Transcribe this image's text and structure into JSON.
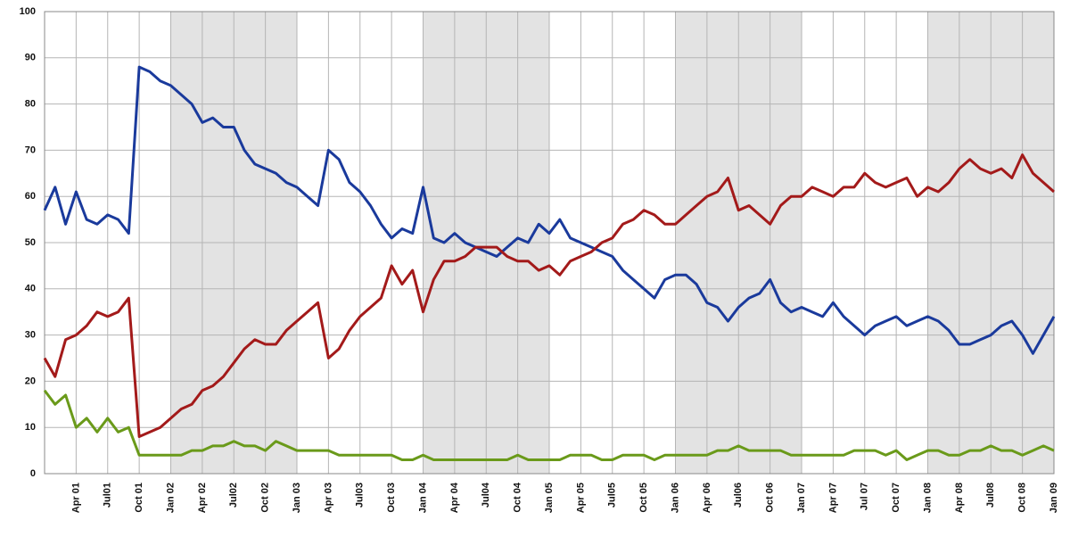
{
  "chart_data": {
    "type": "line",
    "x": [
      "2001-01",
      "2001-02",
      "2001-03",
      "2001-04",
      "2001-05",
      "2001-06",
      "2001-07",
      "2001-08",
      "2001-09",
      "2001-10",
      "2001-11",
      "2001-12",
      "2002-01",
      "2002-02",
      "2002-03",
      "2002-04",
      "2002-05",
      "2002-06",
      "2002-07",
      "2002-08",
      "2002-09",
      "2002-10",
      "2002-11",
      "2002-12",
      "2003-01",
      "2003-02",
      "2003-03",
      "2003-04",
      "2003-05",
      "2003-06",
      "2003-07",
      "2003-08",
      "2003-09",
      "2003-10",
      "2003-11",
      "2003-12",
      "2004-01",
      "2004-02",
      "2004-03",
      "2004-04",
      "2004-05",
      "2004-06",
      "2004-07",
      "2004-08",
      "2004-09",
      "2004-10",
      "2004-11",
      "2004-12",
      "2005-01",
      "2005-02",
      "2005-03",
      "2005-04",
      "2005-05",
      "2005-06",
      "2005-07",
      "2005-08",
      "2005-09",
      "2005-10",
      "2005-11",
      "2005-12",
      "2006-01",
      "2006-02",
      "2006-03",
      "2006-04",
      "2006-05",
      "2006-06",
      "2006-07",
      "2006-08",
      "2006-09",
      "2006-10",
      "2006-11",
      "2006-12",
      "2007-01",
      "2007-02",
      "2007-03",
      "2007-04",
      "2007-05",
      "2007-06",
      "2007-07",
      "2007-08",
      "2007-09",
      "2007-10",
      "2007-11",
      "2007-12",
      "2008-01",
      "2008-02",
      "2008-03",
      "2008-04",
      "2008-05",
      "2008-06",
      "2008-07",
      "2008-08",
      "2008-09",
      "2008-10",
      "2008-11",
      "2008-12",
      "2009-01"
    ],
    "series": [
      {
        "color": "#1a3a9c",
        "values": [
          57,
          62,
          54,
          61,
          55,
          54,
          56,
          55,
          52,
          88,
          87,
          85,
          84,
          82,
          80,
          76,
          77,
          75,
          75,
          70,
          67,
          66,
          65,
          63,
          62,
          60,
          58,
          70,
          68,
          63,
          61,
          58,
          54,
          51,
          53,
          52,
          62,
          51,
          50,
          52,
          50,
          49,
          48,
          47,
          49,
          51,
          50,
          54,
          52,
          55,
          51,
          50,
          49,
          48,
          47,
          44,
          42,
          40,
          38,
          42,
          43,
          43,
          41,
          37,
          36,
          33,
          36,
          38,
          39,
          42,
          37,
          35,
          36,
          35,
          34,
          37,
          34,
          32,
          30,
          32,
          33,
          34,
          32,
          33,
          34,
          33,
          31,
          28,
          28,
          29,
          30,
          32,
          33,
          30,
          26,
          30,
          34
        ]
      },
      {
        "color": "#a31a1a",
        "values": [
          25,
          21,
          29,
          30,
          32,
          35,
          34,
          35,
          38,
          8,
          9,
          10,
          12,
          14,
          15,
          18,
          19,
          21,
          24,
          27,
          29,
          28,
          28,
          31,
          33,
          35,
          37,
          25,
          27,
          31,
          34,
          36,
          38,
          45,
          41,
          44,
          35,
          42,
          46,
          46,
          47,
          49,
          49,
          49,
          47,
          46,
          46,
          44,
          45,
          43,
          46,
          47,
          48,
          50,
          51,
          54,
          55,
          57,
          56,
          54,
          54,
          56,
          58,
          60,
          61,
          64,
          57,
          58,
          56,
          54,
          58,
          60,
          60,
          62,
          61,
          60,
          62,
          62,
          65,
          63,
          62,
          63,
          64,
          60,
          62,
          61,
          63,
          66,
          68,
          66,
          65,
          66,
          64,
          69,
          65,
          63,
          61
        ]
      },
      {
        "color": "#6a9a1a",
        "values": [
          18,
          15,
          17,
          10,
          12,
          9,
          12,
          9,
          10,
          4,
          4,
          4,
          4,
          4,
          5,
          5,
          6,
          6,
          7,
          6,
          6,
          5,
          7,
          6,
          5,
          5,
          5,
          5,
          4,
          4,
          4,
          4,
          4,
          4,
          3,
          3,
          4,
          3,
          3,
          3,
          3,
          3,
          3,
          3,
          3,
          4,
          3,
          3,
          3,
          3,
          4,
          4,
          4,
          3,
          3,
          4,
          4,
          4,
          3,
          4,
          4,
          4,
          4,
          4,
          5,
          5,
          6,
          5,
          5,
          5,
          5,
          4,
          4,
          4,
          4,
          4,
          4,
          5,
          5,
          5,
          4,
          5,
          3,
          4,
          5,
          5,
          4,
          4,
          5,
          5,
          6,
          5,
          5,
          4,
          5,
          6,
          5
        ]
      }
    ],
    "xlim": [
      "2001-01",
      "2009-01"
    ],
    "xticks": [
      {
        "value": "2001-04",
        "label": "Apr 01"
      },
      {
        "value": "2001-07",
        "label": "Jul01"
      },
      {
        "value": "2001-10",
        "label": "Oct 01"
      },
      {
        "value": "2002-01",
        "label": "Jan 02"
      },
      {
        "value": "2002-04",
        "label": "Apr 02"
      },
      {
        "value": "2002-07",
        "label": "Jul02"
      },
      {
        "value": "2002-10",
        "label": "Oct 02"
      },
      {
        "value": "2003-01",
        "label": "Jan 03"
      },
      {
        "value": "2003-04",
        "label": "Apr 03"
      },
      {
        "value": "2003-07",
        "label": "Jul03"
      },
      {
        "value": "2003-10",
        "label": "Oct 03"
      },
      {
        "value": "2004-01",
        "label": "Jan 04"
      },
      {
        "value": "2004-04",
        "label": "Apr 04"
      },
      {
        "value": "2004-07",
        "label": "Jul04"
      },
      {
        "value": "2004-10",
        "label": "Oct 04"
      },
      {
        "value": "2005-01",
        "label": "Jan 05"
      },
      {
        "value": "2005-04",
        "label": "Apr 05"
      },
      {
        "value": "2005-07",
        "label": "Jul05"
      },
      {
        "value": "2005-10",
        "label": "Oct 05"
      },
      {
        "value": "2006-01",
        "label": "Jan 06"
      },
      {
        "value": "2006-04",
        "label": "Apr 06"
      },
      {
        "value": "2006-07",
        "label": "Jul06"
      },
      {
        "value": "2006-10",
        "label": "Oct 06"
      },
      {
        "value": "2007-01",
        "label": "Jan 07"
      },
      {
        "value": "2007-04",
        "label": "Apr 07"
      },
      {
        "value": "2007-07",
        "label": "Jul 07"
      },
      {
        "value": "2007-10",
        "label": "Oct 07"
      },
      {
        "value": "2008-01",
        "label": "Jan 08"
      },
      {
        "value": "2008-04",
        "label": "Apr 08"
      },
      {
        "value": "2008-07",
        "label": "Jul08"
      },
      {
        "value": "2008-10",
        "label": "Oct 08"
      },
      {
        "value": "2009-01",
        "label": "Jan 09"
      }
    ],
    "ylim": [
      0,
      100
    ],
    "yticks": [
      0,
      10,
      20,
      30,
      40,
      50,
      60,
      70,
      80,
      90,
      100
    ],
    "grid": true,
    "shaded_ranges": [
      [
        "2002-01",
        "2003-01"
      ],
      [
        "2004-01",
        "2005-01"
      ],
      [
        "2006-01",
        "2007-01"
      ],
      [
        "2008-01",
        "2009-01"
      ]
    ]
  }
}
